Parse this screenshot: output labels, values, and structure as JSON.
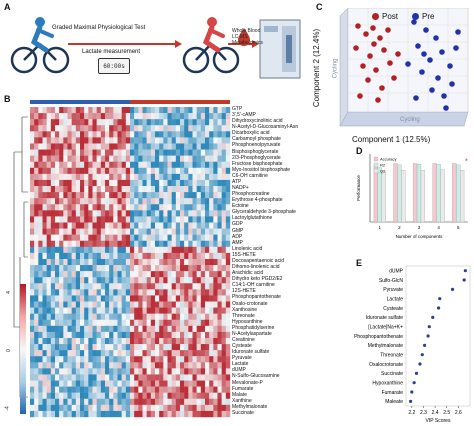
{
  "panels": {
    "a": "A",
    "b": "B",
    "c": "C",
    "d": "D",
    "e": "E"
  },
  "workflow": {
    "test_label": "Graded Maximal Physiological Test",
    "lactate_label": "Lactate measurement",
    "timer": "60:00s",
    "blood_labels": [
      "Whole Blood",
      "LC-MS",
      "Metabolomics"
    ]
  },
  "heatmap": {
    "colorbar_ticks": [
      "4",
      "0",
      "-4"
    ],
    "metabolites": [
      "GTP",
      "3',5'-cAMP",
      "Dihydroxycinolinic acid",
      "N-Acetyl-D-Glucosaminyl-Asn",
      "Dicarboxylic acid",
      "Carbamoyl phosphate",
      "Phosphoenolpyruvate",
      "Bisphosphoglycerate",
      "2/3-Phosphoglycerate",
      "Fructose bisphosphate",
      "Myo-Inositol bisphosphate",
      "C6-OH carnitine",
      "ATP",
      "NADP+",
      "Phosphocreatine",
      "Erythrose 4-phosphate",
      "Ectoine",
      "Glyceraldehyde 3-phosphate",
      "Lactoylglutathione",
      "GDP",
      "GMP",
      "ADP",
      "AMP",
      "Linolenic acid",
      "15S-HETE",
      "Docosapentaenoic acid",
      "Dihomo-linolenic acid",
      "Arachidic acid",
      "Dihydro keto PGD2/E2",
      "C14:1-OH carnitine",
      "12S-HETE",
      "Phosphopantothenate",
      "Oxalo-crotonate",
      "Xanthosine",
      "Threonate",
      "Hypoxanthine",
      "Phosphatidylserine",
      "N-Acetylaspartate",
      "Creatinine",
      "Cysteate",
      "Iduronate sulfate",
      "Pyruvate",
      "Lactate",
      "dUMP",
      "N-Sulfo-Glucosamine",
      "Mevalonate-P",
      "Fumarate",
      "Malate",
      "Xanthine",
      "Methylmalonate",
      "Succinate"
    ]
  },
  "pca": {
    "xlabel": "Component 1 (12.5%)",
    "ylabel": "Component 2 (12.4%)",
    "legend": [
      {
        "name": "Post",
        "color": "#b22222"
      },
      {
        "name": "Pre",
        "color": "#2233aa"
      }
    ],
    "side_label": "Cycling"
  },
  "chart_data": [
    {
      "type": "bar",
      "panel": "D",
      "ylabel": "Performance",
      "xlabel": "Number of components",
      "categories": [
        "1",
        "2",
        "3",
        "4",
        "5"
      ],
      "series": [
        {
          "name": "Accuracy",
          "values": [
            0.84,
            0.86,
            0.86,
            0.86,
            0.86
          ]
        },
        {
          "name": "R2",
          "values": [
            0.8,
            0.84,
            0.85,
            0.85,
            0.84
          ]
        },
        {
          "name": "Q2",
          "values": [
            0.74,
            0.76,
            0.76,
            0.77,
            0.76
          ]
        }
      ],
      "ylim": [
        0,
        1
      ],
      "colors": {
        "Accuracy": "#f7c6cf",
        "R2": "#c7efe7",
        "Q2": "#eaeaea"
      },
      "legend": "top-left",
      "marker": {
        "category": "5",
        "symbol": "*"
      }
    },
    {
      "type": "scatter",
      "panel": "E",
      "xlabel": "VIP Scores",
      "xlim": [
        2.15,
        2.7
      ],
      "xticks": [
        "2.2",
        "2.3",
        "2.4",
        "2.5",
        "2.6"
      ],
      "categories": [
        "dUMP",
        "Sulfo-GlcN",
        "Pyruvate",
        "Lactate",
        "Cysteate",
        "Iduronate sulfate",
        "[Lactate]Na+K+",
        "Phosphopantothenate",
        "Methylmalonate",
        "Threonate",
        "Oxalocrotonate",
        "Succinate",
        "Hypoxanthine",
        "Fumarate",
        "Maleate"
      ],
      "values": [
        2.66,
        2.65,
        2.55,
        2.44,
        2.43,
        2.38,
        2.35,
        2.34,
        2.31,
        2.29,
        2.27,
        2.24,
        2.22,
        2.2,
        2.19
      ],
      "color": "#2a3f9a"
    }
  ]
}
